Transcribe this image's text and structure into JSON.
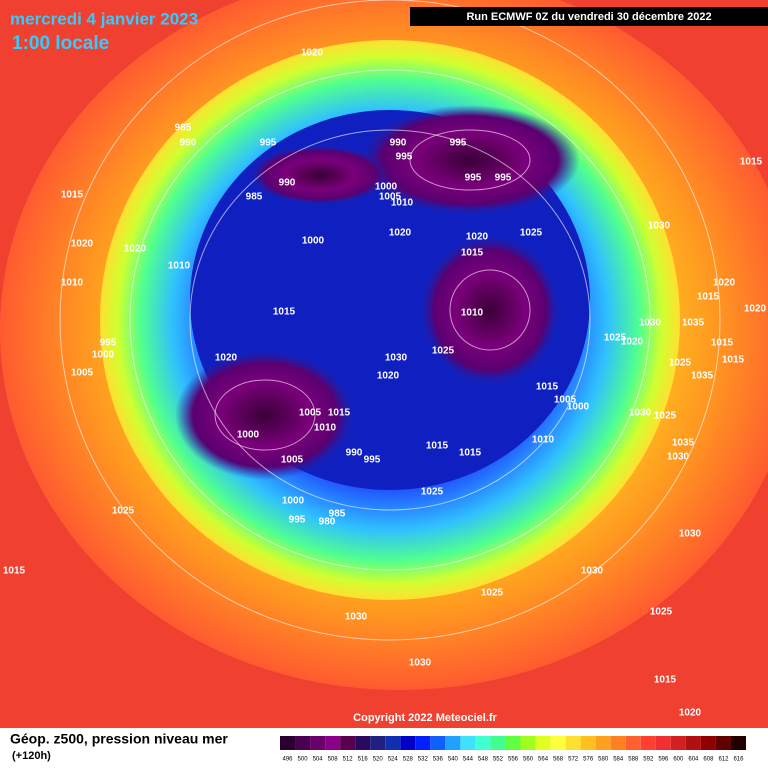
{
  "header": {
    "date": "mercredi 4 janvier 2023",
    "time": "1:00 locale",
    "run": "Run ECMWF 0Z du vendredi 30 décembre 2022"
  },
  "footer": {
    "copyright": "Copyright 2022 Meteociel.fr"
  },
  "legend": {
    "title": "Géop. z500, pression niveau mer",
    "subtitle": "(+120h)",
    "ticks": [
      496,
      500,
      504,
      508,
      512,
      516,
      520,
      524,
      528,
      532,
      536,
      540,
      544,
      548,
      552,
      556,
      560,
      564,
      568,
      572,
      576,
      580,
      584,
      588,
      592,
      596,
      600,
      604,
      608,
      612,
      616
    ],
    "colors": [
      "#2a0030",
      "#4a0050",
      "#6a006a",
      "#8a008a",
      "#5a0050",
      "#2a0a60",
      "#202080",
      "#1030b0",
      "#0000c8",
      "#0020ff",
      "#1060ff",
      "#20a0ff",
      "#40e0ff",
      "#40ffd0",
      "#40ff90",
      "#60ff40",
      "#a0ff20",
      "#e0ff20",
      "#ffff40",
      "#ffe030",
      "#ffc020",
      "#ffa020",
      "#ff8020",
      "#ff6030",
      "#ff4030",
      "#f03030",
      "#d02020",
      "#b01010",
      "#900000",
      "#600000",
      "#200000"
    ]
  },
  "pressure_labels": [
    1020,
    985,
    990,
    995,
    990,
    995,
    995,
    995,
    995,
    990,
    985,
    1000,
    1005,
    1010,
    1015,
    1015,
    1030,
    1025,
    1020,
    1020,
    1000,
    1020,
    1020,
    1010,
    1015,
    1010,
    1020,
    1015,
    1020,
    1015,
    1010,
    995,
    1000,
    1030,
    1025,
    1025,
    1020,
    1030,
    1035,
    1015,
    1015,
    1025,
    1035,
    1020,
    1005,
    1020,
    1015,
    1005,
    1000,
    1030,
    1025,
    1005,
    1015,
    1010,
    1000,
    1010,
    1015,
    1015,
    1035,
    1030,
    990,
    995,
    1005,
    1025,
    1000,
    985,
    995,
    980,
    1025,
    1030,
    1015,
    1030,
    1025,
    1025,
    1030,
    1030,
    1015,
    1020
  ]
}
